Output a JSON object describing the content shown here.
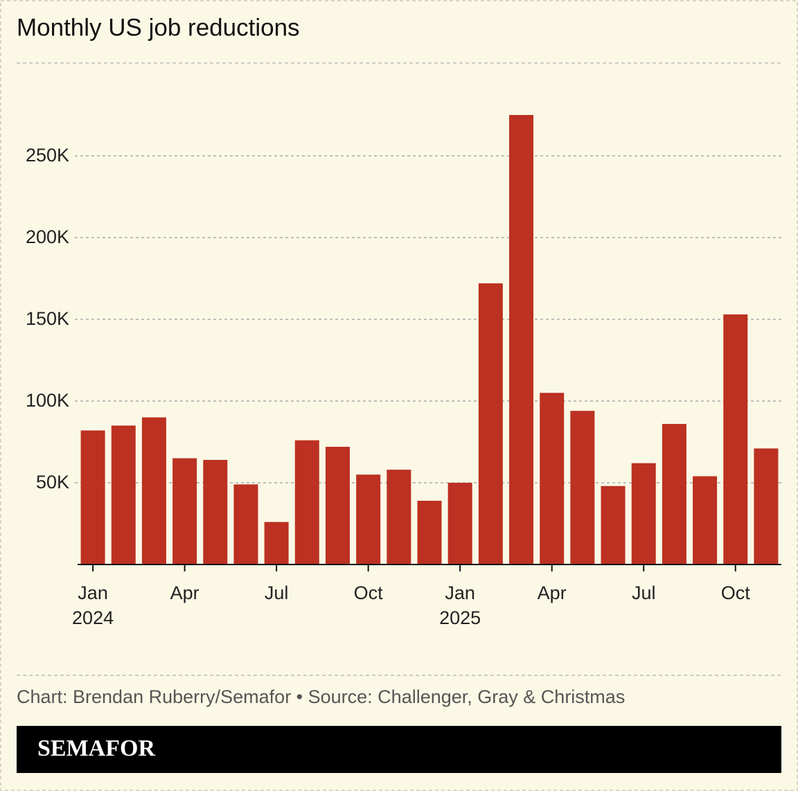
{
  "chart_data": {
    "type": "bar",
    "title": "Monthly US job reductions",
    "categories": [
      "Jan\n2024",
      null,
      null,
      "Apr",
      null,
      null,
      "Jul",
      null,
      null,
      "Oct",
      null,
      null,
      "Jan\n2025",
      null,
      null,
      "Apr",
      null,
      null,
      "Jul",
      null,
      null,
      "Oct",
      null
    ],
    "values": [
      82000,
      85000,
      90000,
      65000,
      64000,
      49000,
      26000,
      76000,
      72000,
      55000,
      58000,
      39000,
      50000,
      172000,
      275000,
      105000,
      94000,
      48000,
      62000,
      86000,
      54000,
      153000,
      71000
    ],
    "color": "#bc3121",
    "ylim": [
      0,
      290000
    ],
    "yticks": [
      {
        "value": 50000,
        "label": "50K"
      },
      {
        "value": 100000,
        "label": "100K"
      },
      {
        "value": 150000,
        "label": "150K"
      },
      {
        "value": 200000,
        "label": "200K"
      },
      {
        "value": 250000,
        "label": "250K"
      }
    ],
    "grid": true,
    "credit": "Chart: Brendan Ruberry/Semafor • Source: Challenger, Gray & Christmas",
    "logo": "SEMAFOR"
  }
}
